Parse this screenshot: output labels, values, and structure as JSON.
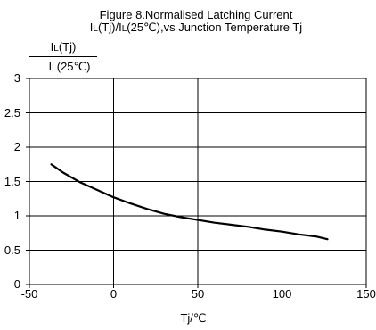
{
  "chart_data": {
    "type": "line",
    "title": "Figure 8.Normalised Latching Current",
    "subtitle": {
      "part1": "I",
      "sub1": "L",
      "part2": "(Tj)/I",
      "sub2": "L",
      "part3": "(25℃),vs Junction Temperature Tj"
    },
    "ylabel": {
      "num_main": "I",
      "num_sub": "L",
      "num_rest": "(Tj)",
      "den_main": "I",
      "den_sub": "L",
      "den_rest": "(25℃)"
    },
    "xlabel": "Tj/℃",
    "xlim": [
      -50,
      150
    ],
    "ylim": [
      0,
      3
    ],
    "xticks": [
      "-50",
      "0",
      "50",
      "100",
      "150"
    ],
    "yticks": [
      "0",
      "0.5",
      "1",
      "1.5",
      "2",
      "2.5",
      "3"
    ],
    "grid": true,
    "series": [
      {
        "x": [
          -37,
          -30,
          -20,
          -10,
          0,
          10,
          20,
          30,
          40,
          50,
          60,
          70,
          80,
          90,
          100,
          110,
          120,
          127
        ],
        "y": [
          1.75,
          1.63,
          1.49,
          1.38,
          1.27,
          1.18,
          1.1,
          1.03,
          0.98,
          0.94,
          0.9,
          0.87,
          0.84,
          0.8,
          0.77,
          0.73,
          0.7,
          0.66
        ]
      }
    ]
  }
}
